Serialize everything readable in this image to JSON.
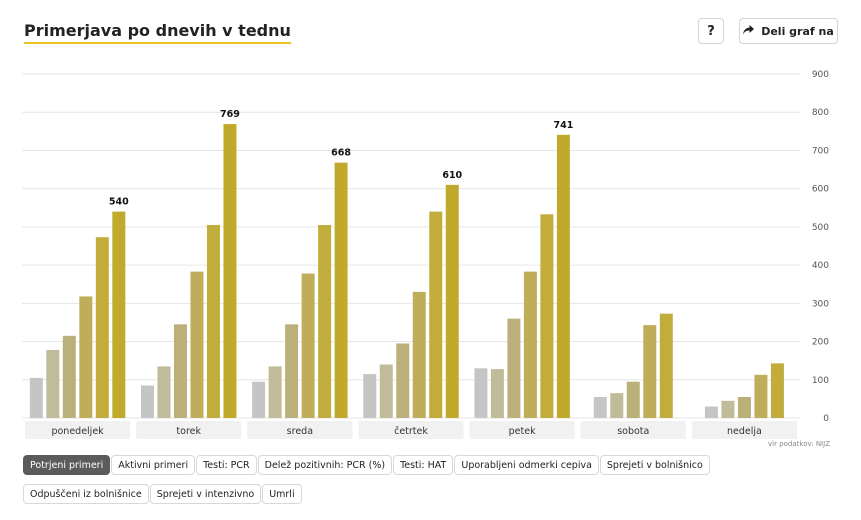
{
  "header": {
    "title": "Primerjava po dnevih v tednu",
    "help_label": "?",
    "share_label": "Deli graf na"
  },
  "source_label": "vir podatkov: NIJZ",
  "filters": [
    {
      "label": "Potrjeni primeri",
      "active": true
    },
    {
      "label": "Aktivni primeri",
      "active": false
    },
    {
      "label": "Testi: PCR",
      "active": false
    },
    {
      "label": "Delež pozitivnih: PCR (%)",
      "active": false
    },
    {
      "label": "Testi: HAT",
      "active": false
    },
    {
      "label": "Uporabljeni odmerki cepiva",
      "active": false
    },
    {
      "label": "Sprejeti v bolnišnico",
      "active": false
    },
    {
      "label": "Odpuščeni iz bolnišnice",
      "active": false
    },
    {
      "label": "Sprejeti v intenzivno",
      "active": false
    },
    {
      "label": "Umrli",
      "active": false
    }
  ],
  "colors": {
    "series": [
      "#c5c5c5",
      "#c0bb98",
      "#bcb07a",
      "#c0ad5a",
      "#c2ad3c",
      "#c1a92c"
    ],
    "accent_underline": "#e8c420"
  },
  "chart_data": {
    "type": "bar",
    "categories": [
      "ponedeljek",
      "torek",
      "sreda",
      "četrtek",
      "petek",
      "sobota",
      "nedelja"
    ],
    "ylim": [
      0,
      900
    ],
    "yticks": [
      0,
      100,
      200,
      300,
      400,
      500,
      600,
      700,
      800,
      900
    ],
    "grid": true,
    "series": [
      {
        "values": [
          105,
          85,
          95,
          115,
          130,
          55,
          30
        ]
      },
      {
        "values": [
          178,
          135,
          135,
          140,
          128,
          65,
          45
        ]
      },
      {
        "values": [
          215,
          245,
          245,
          195,
          260,
          95,
          55
        ]
      },
      {
        "values": [
          318,
          383,
          378,
          330,
          383,
          243,
          113
        ]
      },
      {
        "values": [
          473,
          505,
          505,
          540,
          533,
          273,
          143
        ]
      },
      {
        "values": [
          540,
          769,
          668,
          610,
          741,
          null,
          null
        ]
      }
    ],
    "data_labels": [
      "540",
      "769",
      "668",
      "610",
      "741",
      "",
      ""
    ]
  }
}
